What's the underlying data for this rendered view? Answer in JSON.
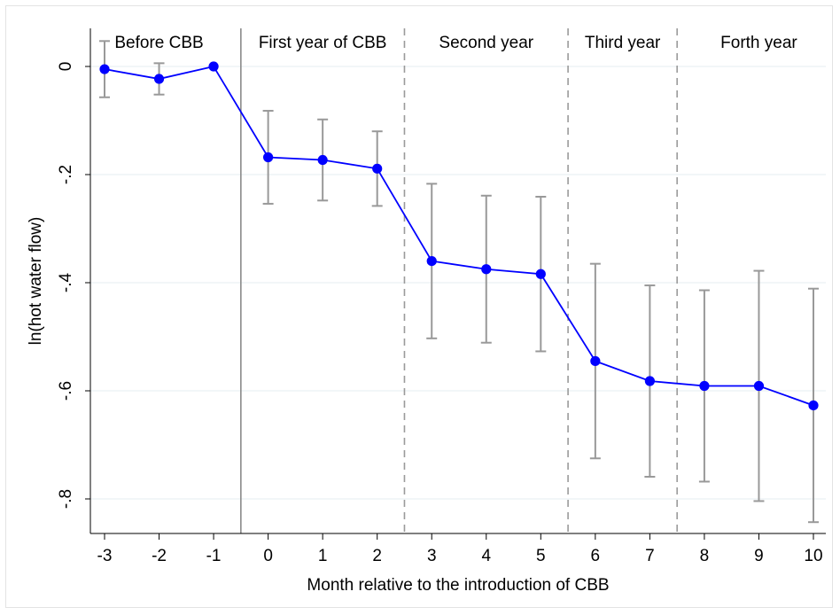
{
  "chart_data": {
    "type": "line",
    "title": "",
    "xlabel": "Month relative to the introduction of CBB",
    "ylabel": "ln(hot water flow)",
    "xlim": [
      -3,
      10
    ],
    "ylim": [
      -0.86,
      0.07
    ],
    "x_ticks": [
      "-3",
      "-2",
      "-1",
      "0",
      "1",
      "2",
      "3",
      "4",
      "5",
      "6",
      "7",
      "8",
      "9",
      "10"
    ],
    "y_ticks": [
      {
        "value": 0,
        "label": "0"
      },
      {
        "value": -0.2,
        "label": "-.2"
      },
      {
        "value": -0.4,
        "label": "-.4"
      },
      {
        "value": -0.6,
        "label": "-.6"
      },
      {
        "value": -0.8,
        "label": "-.8"
      }
    ],
    "grid": "horizontal",
    "series": [
      {
        "name": "",
        "color": "#0000ff",
        "points": [
          {
            "x": -3,
            "y": -0.005,
            "lo": -0.057,
            "hi": 0.047
          },
          {
            "x": -2,
            "y": -0.023,
            "lo": -0.052,
            "hi": 0.006
          },
          {
            "x": -1,
            "y": 0.0,
            "lo": null,
            "hi": null
          },
          {
            "x": 0,
            "y": -0.168,
            "lo": -0.254,
            "hi": -0.082
          },
          {
            "x": 1,
            "y": -0.173,
            "lo": -0.248,
            "hi": -0.098
          },
          {
            "x": 2,
            "y": -0.189,
            "lo": -0.258,
            "hi": -0.12
          },
          {
            "x": 3,
            "y": -0.36,
            "lo": -0.503,
            "hi": -0.217
          },
          {
            "x": 4,
            "y": -0.375,
            "lo": -0.511,
            "hi": -0.239
          },
          {
            "x": 5,
            "y": -0.384,
            "lo": -0.527,
            "hi": -0.241
          },
          {
            "x": 6,
            "y": -0.545,
            "lo": -0.725,
            "hi": -0.365
          },
          {
            "x": 7,
            "y": -0.582,
            "lo": -0.759,
            "hi": -0.405
          },
          {
            "x": 8,
            "y": -0.591,
            "lo": -0.768,
            "hi": -0.414
          },
          {
            "x": 9,
            "y": -0.591,
            "lo": -0.804,
            "hi": -0.378
          },
          {
            "x": 10,
            "y": -0.627,
            "lo": -0.843,
            "hi": -0.411
          }
        ]
      }
    ],
    "ci_color": "#999999",
    "reference_lines": [
      {
        "x": -0.5,
        "style": "solid"
      },
      {
        "x": 2.5,
        "style": "dashed"
      },
      {
        "x": 5.5,
        "style": "dashed"
      },
      {
        "x": 7.5,
        "style": "dashed"
      }
    ],
    "period_labels": [
      {
        "text": "Before CBB",
        "x": -2
      },
      {
        "text": "First year of CBB",
        "x": 1
      },
      {
        "text": "Second year",
        "x": 4
      },
      {
        "text": "Third year",
        "x": 6.5
      },
      {
        "text": "Forth year",
        "x": 9
      }
    ]
  }
}
